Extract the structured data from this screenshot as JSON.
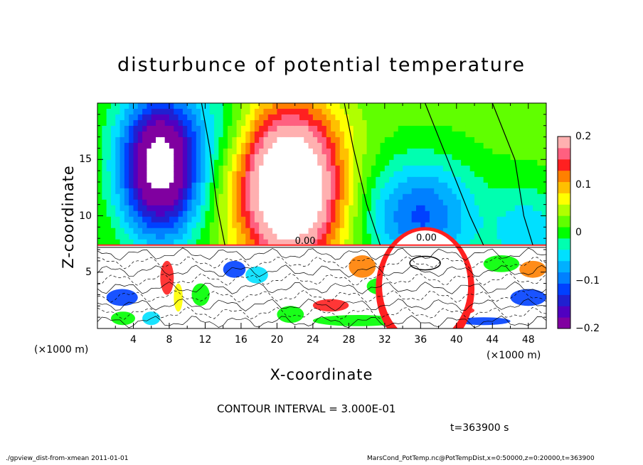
{
  "chart_data": {
    "type": "heatmap",
    "title": "disturbunce of potential temperature",
    "xlabel": "X-coordinate",
    "ylabel": "Z-coordinate",
    "x_unit_label": "(×1000 m)",
    "xlim": [
      0,
      50
    ],
    "ylim": [
      0,
      20
    ],
    "x_ticks": [
      4,
      8,
      12,
      16,
      20,
      24,
      28,
      32,
      36,
      40,
      44,
      48
    ],
    "y_ticks": [
      5,
      10,
      15
    ],
    "colorbar": {
      "vmin": -0.2,
      "vmax": 0.2,
      "tick_labels": [
        "0.2",
        "0.1",
        "0",
        "−0.1",
        "−0.2"
      ],
      "tick_values": [
        0.2,
        0.1,
        0,
        -0.1,
        -0.2
      ],
      "levels": [
        -0.2,
        -0.175,
        -0.15,
        -0.125,
        -0.1,
        -0.075,
        -0.05,
        -0.025,
        0,
        0.025,
        0.05,
        0.075,
        0.1,
        0.125,
        0.15,
        0.175,
        0.2
      ],
      "colors": [
        "#8000a0",
        "#5000c0",
        "#2020d0",
        "#0040ff",
        "#0080ff",
        "#00b0ff",
        "#00e0ff",
        "#00ffb0",
        "#00ff00",
        "#60ff00",
        "#b0ff00",
        "#ffff00",
        "#ffc000",
        "#ff8000",
        "#ff2020",
        "#ff6080",
        "#ffb0b0"
      ]
    },
    "contour_labels": [
      "0.00",
      "0.00"
    ],
    "features": [
      {
        "kind": "cold core",
        "x": 7,
        "z": 14,
        "value": -0.2
      },
      {
        "kind": "warm core",
        "x": 21.5,
        "z": 13,
        "value": 0.2
      },
      {
        "kind": "cold anomaly",
        "x": 36,
        "z": 10,
        "value": -0.1
      }
    ]
  },
  "contour_interval": "CONTOUR INTERVAL = 3.000E-01",
  "time_label": "t=363900 s",
  "footer": {
    "left": "./gpview_dist-from-xmean  2011-01-01",
    "right": "MarsCond_PotTemp.nc@PotTempDist,x=0:50000,z=0:20000,t=363900"
  }
}
